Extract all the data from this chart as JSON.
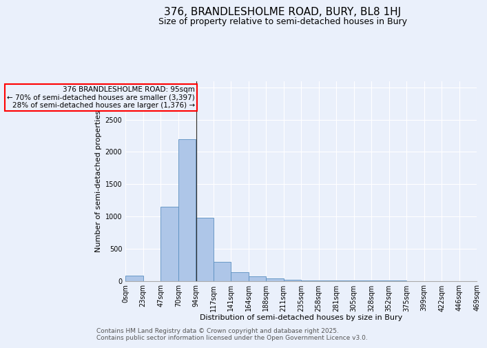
{
  "title": "376, BRANDLESHOLME ROAD, BURY, BL8 1HJ",
  "subtitle": "Size of property relative to semi-detached houses in Bury",
  "xlabel": "Distribution of semi-detached houses by size in Bury",
  "ylabel": "Number of semi-detached properties",
  "bin_labels": [
    "0sqm",
    "23sqm",
    "47sqm",
    "70sqm",
    "94sqm",
    "117sqm",
    "141sqm",
    "164sqm",
    "188sqm",
    "211sqm",
    "235sqm",
    "258sqm",
    "281sqm",
    "305sqm",
    "328sqm",
    "352sqm",
    "375sqm",
    "399sqm",
    "422sqm",
    "446sqm",
    "469sqm"
  ],
  "bar_heights": [
    80,
    0,
    1150,
    2200,
    980,
    290,
    130,
    65,
    35,
    15,
    8,
    5,
    3,
    2,
    1,
    1,
    0,
    0,
    0,
    0
  ],
  "bar_color": "#aec6e8",
  "bar_edge_color": "#5a8fc0",
  "ylim": [
    0,
    3100
  ],
  "yticks": [
    0,
    500,
    1000,
    1500,
    2000,
    2500,
    3000
  ],
  "property_line_bin": 4,
  "annotation_text": "376 BRANDLESHOLME ROAD: 95sqm\n← 70% of semi-detached houses are smaller (3,397)\n28% of semi-detached houses are larger (1,376) →",
  "annotation_box_color": "#ff0000",
  "footer_line1": "Contains HM Land Registry data © Crown copyright and database right 2025.",
  "footer_line2": "Contains public sector information licensed under the Open Government Licence v3.0.",
  "background_color": "#eaf0fb",
  "grid_color": "#ffffff",
  "title_fontsize": 11,
  "subtitle_fontsize": 9,
  "axis_label_fontsize": 8,
  "tick_fontsize": 7,
  "annotation_fontsize": 7.5,
  "footer_fontsize": 6.5
}
